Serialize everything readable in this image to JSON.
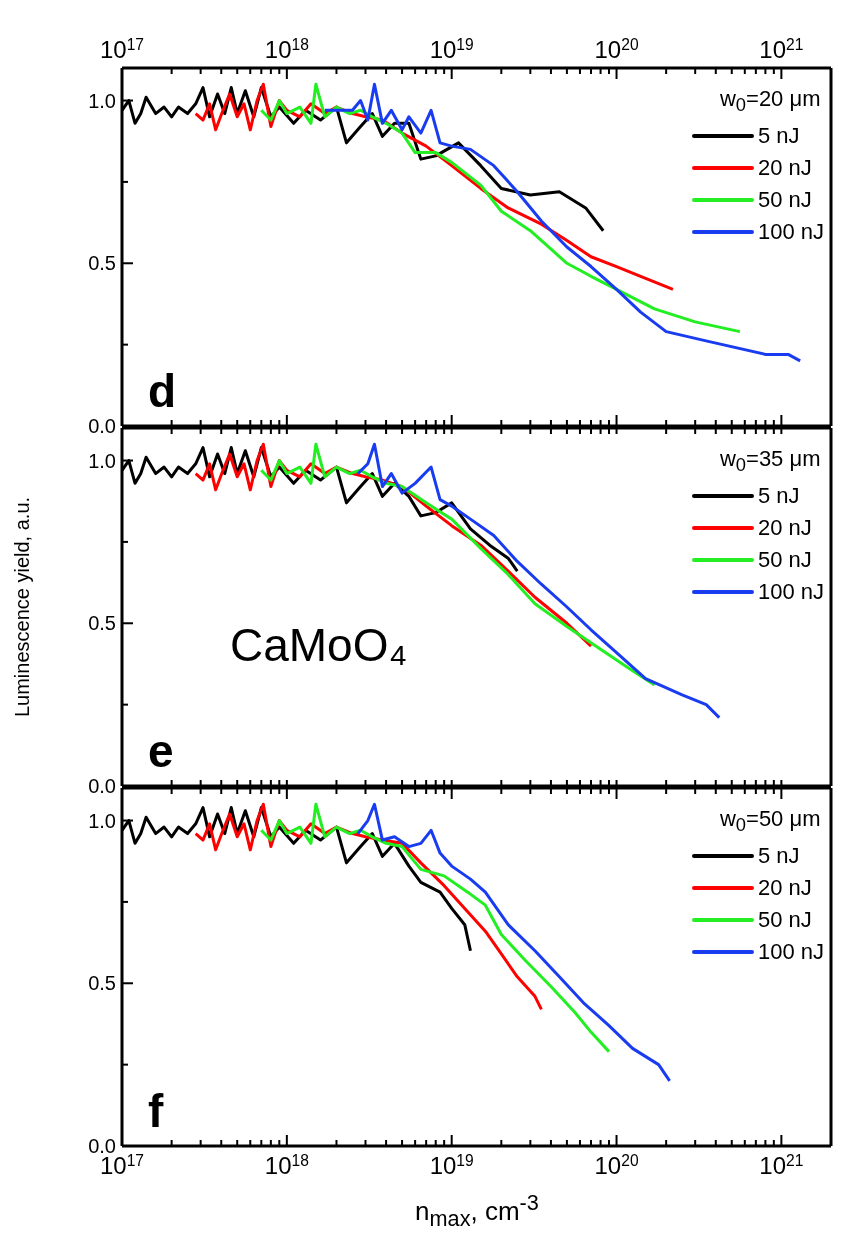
{
  "chart_data": [
    {
      "type": "line",
      "title": "d",
      "legend_title": "w$_{0}$=20 μm",
      "legend": "top right",
      "xlim": [
        1e+17,
        2e+21
      ],
      "ylim": [
        0,
        1.1
      ],
      "log": "x",
      "xticks": [
        {
          "value": 1e+17,
          "label": "10$^{17}$"
        },
        {
          "value": 2e+17,
          "label": null
        },
        {
          "value": 3e+17,
          "label": null
        },
        {
          "value": 4e+17,
          "label": null
        },
        {
          "value": 5e+17,
          "label": null
        },
        {
          "value": 6e+17,
          "label": null
        },
        {
          "value": 7e+17,
          "label": null
        },
        {
          "value": 8e+17,
          "label": null
        },
        {
          "value": 9e+17,
          "label": null
        },
        {
          "value": 1e+18,
          "label": "10$^{18}$"
        },
        {
          "value": 2e+18,
          "label": null
        },
        {
          "value": 3e+18,
          "label": null
        },
        {
          "value": 4e+18,
          "label": null
        },
        {
          "value": 5e+18,
          "label": null
        },
        {
          "value": 6e+18,
          "label": null
        },
        {
          "value": 7e+18,
          "label": null
        },
        {
          "value": 8e+18,
          "label": null
        },
        {
          "value": 9e+18,
          "label": null
        },
        {
          "value": 1e+19,
          "label": "10$^{19}$"
        },
        {
          "value": 2e+19,
          "label": null
        },
        {
          "value": 3e+19,
          "label": null
        },
        {
          "value": 4e+19,
          "label": null
        },
        {
          "value": 5e+19,
          "label": null
        },
        {
          "value": 6e+19,
          "label": null
        },
        {
          "value": 7e+19,
          "label": null
        },
        {
          "value": 8e+19,
          "label": null
        },
        {
          "value": 9e+19,
          "label": null
        },
        {
          "value": 1e+20,
          "label": "10$^{20}$"
        },
        {
          "value": 2e+20,
          "label": null
        },
        {
          "value": 3e+20,
          "label": null
        },
        {
          "value": 4e+20,
          "label": null
        },
        {
          "value": 5e+20,
          "label": null
        },
        {
          "value": 6e+20,
          "label": null
        },
        {
          "value": 7e+20,
          "label": null
        },
        {
          "value": 8e+20,
          "label": null
        },
        {
          "value": 9e+20,
          "label": null
        },
        {
          "value": 1e+21,
          "label": "10$^{21}$"
        }
      ],
      "yticks": [
        {
          "value": 0,
          "label": "0.0"
        },
        {
          "value": 0.25,
          "label": null
        },
        {
          "value": 0.5,
          "label": "0.5"
        },
        {
          "value": 0.75,
          "label": null
        },
        {
          "value": 1,
          "label": "1.0"
        }
      ],
      "series": [
        {
          "name": "5 nJ",
          "color": "#000000",
          "x": [
            1e+17,
            1.1e+17,
            1.2e+17,
            1.3e+17,
            1.4e+17,
            1.6e+17,
            1.8e+17,
            2e+17,
            2.2e+17,
            2.5e+17,
            2.8e+17,
            3.1e+17,
            3.4e+17,
            3.8e+17,
            4.2e+17,
            4.6e+17,
            5e+17,
            5.6e+17,
            6.3e+17,
            7e+17,
            8e+17,
            9e+17,
            1.1e+18,
            1.3e+18,
            1.6e+18,
            2e+18,
            2.3e+18,
            2.8e+18,
            3.3e+18,
            3.8e+18,
            4.5e+18,
            5.5e+18,
            6.5e+18,
            8e+18,
            1.1e+19,
            1.5e+19,
            2e+19,
            3e+19,
            4.5e+19,
            6.5e+19,
            8.3e+19
          ],
          "values": [
            0.97,
            1.0,
            0.93,
            0.96,
            1.01,
            0.96,
            0.98,
            0.95,
            0.98,
            0.96,
            0.99,
            1.04,
            0.95,
            1.02,
            0.96,
            1.04,
            0.96,
            1.03,
            0.95,
            1.04,
            0.95,
            0.98,
            0.93,
            0.97,
            0.94,
            0.98,
            0.87,
            0.92,
            0.96,
            0.89,
            0.93,
            0.93,
            0.82,
            0.83,
            0.87,
            0.8,
            0.73,
            0.71,
            0.72,
            0.67,
            0.6
          ]
        },
        {
          "name": "20 nJ",
          "color": "#ff0000",
          "x": [
            2.8e+17,
            3.1e+17,
            3.4e+17,
            3.7e+17,
            4.1e+17,
            4.5e+17,
            5e+17,
            5.5e+17,
            6e+17,
            6.6e+17,
            7.2e+17,
            8e+17,
            9e+17,
            1e+18,
            1.2e+18,
            1.4e+18,
            1.7e+18,
            2e+18,
            2.5e+18,
            3e+18,
            3.8e+18,
            5e+18,
            7e+18,
            1e+19,
            1.5e+19,
            2.2e+19,
            3.5e+19,
            5e+19,
            7e+19,
            1e+20,
            1.4e+20,
            2.2e+20
          ],
          "values": [
            0.96,
            0.94,
            0.99,
            0.91,
            0.97,
            1.02,
            0.95,
            0.99,
            0.91,
            1.0,
            1.05,
            0.92,
            1.0,
            0.97,
            0.95,
            0.99,
            0.96,
            0.98,
            0.96,
            0.95,
            0.94,
            0.9,
            0.86,
            0.8,
            0.73,
            0.67,
            0.62,
            0.57,
            0.52,
            0.49,
            0.46,
            0.42
          ]
        },
        {
          "name": "50 nJ",
          "color": "#22ee22",
          "x": [
            7e+17,
            8e+17,
            9e+17,
            1e+18,
            1.2e+18,
            1.4e+18,
            1.5e+18,
            1.7e+18,
            2e+18,
            2.4e+18,
            2.8e+18,
            3.3e+18,
            4e+18,
            5e+18,
            6e+18,
            8e+18,
            1e+19,
            1.5e+19,
            2e+19,
            3e+19,
            5e+19,
            7e+19,
            1e+20,
            1.7e+20,
            3e+20,
            5.6e+20
          ],
          "values": [
            0.97,
            0.94,
            1.0,
            0.96,
            0.98,
            0.93,
            1.05,
            0.95,
            0.98,
            0.96,
            0.97,
            0.95,
            0.93,
            0.9,
            0.84,
            0.84,
            0.81,
            0.74,
            0.66,
            0.6,
            0.5,
            0.46,
            0.42,
            0.36,
            0.32,
            0.29
          ]
        },
        {
          "name": "100 nJ",
          "color": "#1a3cf0",
          "x": [
            1.7e+18,
            2.5e+18,
            2.8e+18,
            3.1e+18,
            3.4e+18,
            3.8e+18,
            4.3e+18,
            5e+18,
            5.5e+18,
            6.5e+18,
            7.5e+18,
            8.5e+18,
            1e+19,
            1.3e+19,
            1.8e+19,
            2.5e+19,
            3.5e+19,
            5e+19,
            7e+19,
            1e+20,
            1.4e+20,
            2e+20,
            3.6e+20,
            8e+20,
            1.1e+21,
            1.3e+21
          ],
          "values": [
            0.97,
            0.97,
            1.0,
            0.94,
            1.05,
            0.93,
            0.97,
            0.91,
            0.95,
            0.9,
            0.97,
            0.87,
            0.86,
            0.85,
            0.8,
            0.72,
            0.63,
            0.55,
            0.49,
            0.42,
            0.35,
            0.29,
            0.26,
            0.22,
            0.22,
            0.2
          ]
        }
      ]
    },
    {
      "type": "line",
      "title": "e",
      "legend_title": "w$_{0}$=35 μm",
      "legend": "top right",
      "tick_labels": "y",
      "ylabel": "Luminescence yield, a.u.",
      "annotations": [
        "CaMoO₄"
      ],
      "xlim": [
        1e+17,
        2e+21
      ],
      "ylim": [
        0,
        1.1
      ],
      "log": "x",
      "xticks": [
        {
          "value": 1e+17,
          "label": null
        },
        {
          "value": 2e+17,
          "label": null
        },
        {
          "value": 3e+17,
          "label": null
        },
        {
          "value": 4e+17,
          "label": null
        },
        {
          "value": 5e+17,
          "label": null
        },
        {
          "value": 6e+17,
          "label": null
        },
        {
          "value": 7e+17,
          "label": null
        },
        {
          "value": 8e+17,
          "label": null
        },
        {
          "value": 9e+17,
          "label": null
        },
        {
          "value": 1e+18,
          "label": null
        },
        {
          "value": 2e+18,
          "label": null
        },
        {
          "value": 3e+18,
          "label": null
        },
        {
          "value": 4e+18,
          "label": null
        },
        {
          "value": 5e+18,
          "label": null
        },
        {
          "value": 6e+18,
          "label": null
        },
        {
          "value": 7e+18,
          "label": null
        },
        {
          "value": 8e+18,
          "label": null
        },
        {
          "value": 9e+18,
          "label": null
        },
        {
          "value": 1e+19,
          "label": null
        },
        {
          "value": 2e+19,
          "label": null
        },
        {
          "value": 3e+19,
          "label": null
        },
        {
          "value": 4e+19,
          "label": null
        },
        {
          "value": 5e+19,
          "label": null
        },
        {
          "value": 6e+19,
          "label": null
        },
        {
          "value": 7e+19,
          "label": null
        },
        {
          "value": 8e+19,
          "label": null
        },
        {
          "value": 9e+19,
          "label": null
        },
        {
          "value": 1e+20,
          "label": null
        },
        {
          "value": 2e+20,
          "label": null
        },
        {
          "value": 3e+20,
          "label": null
        },
        {
          "value": 4e+20,
          "label": null
        },
        {
          "value": 5e+20,
          "label": null
        },
        {
          "value": 6e+20,
          "label": null
        },
        {
          "value": 7e+20,
          "label": null
        },
        {
          "value": 8e+20,
          "label": null
        },
        {
          "value": 9e+20,
          "label": null
        },
        {
          "value": 1e+21,
          "label": null
        }
      ],
      "yticks": [
        {
          "value": 0,
          "label": "0.0"
        },
        {
          "value": 0.25,
          "label": null
        },
        {
          "value": 0.5,
          "label": "0.5"
        },
        {
          "value": 0.75,
          "label": null
        },
        {
          "value": 1,
          "label": "1.0"
        }
      ],
      "series": [
        {
          "name": "5 nJ",
          "color": "#000000",
          "x": [
            1e+17,
            1.1e+17,
            1.2e+17,
            1.3e+17,
            1.4e+17,
            1.6e+17,
            1.8e+17,
            2e+17,
            2.2e+17,
            2.5e+17,
            2.8e+17,
            3.1e+17,
            3.4e+17,
            3.8e+17,
            4.2e+17,
            4.6e+17,
            5e+17,
            5.6e+17,
            6.3e+17,
            7e+17,
            8e+17,
            9e+17,
            1.1e+18,
            1.3e+18,
            1.6e+18,
            2e+18,
            2.3e+18,
            2.8e+18,
            3.3e+18,
            3.8e+18,
            4.5e+18,
            5.5e+18,
            6.5e+18,
            8e+18,
            1e+19,
            1.3e+19,
            1.7e+19,
            2.2e+19,
            2.5e+19
          ],
          "values": [
            0.97,
            1.0,
            0.93,
            0.96,
            1.01,
            0.96,
            0.98,
            0.95,
            0.98,
            0.96,
            0.99,
            1.04,
            0.95,
            1.02,
            0.96,
            1.04,
            0.96,
            1.03,
            0.95,
            1.04,
            0.95,
            0.98,
            0.93,
            0.97,
            0.94,
            0.98,
            0.87,
            0.92,
            0.96,
            0.89,
            0.93,
            0.89,
            0.83,
            0.84,
            0.87,
            0.79,
            0.74,
            0.7,
            0.66
          ]
        },
        {
          "name": "20 nJ",
          "color": "#ff0000",
          "x": [
            2.8e+17,
            3.1e+17,
            3.4e+17,
            3.7e+17,
            4.1e+17,
            4.5e+17,
            5e+17,
            5.5e+17,
            6e+17,
            6.6e+17,
            7.2e+17,
            8e+17,
            9e+17,
            1e+18,
            1.2e+18,
            1.4e+18,
            1.7e+18,
            2e+18,
            2.5e+18,
            3e+18,
            3.8e+18,
            5e+18,
            7e+18,
            1e+19,
            1.5e+19,
            2.2e+19,
            3.2e+19,
            5e+19,
            7e+19
          ],
          "values": [
            0.96,
            0.94,
            0.99,
            0.91,
            0.97,
            1.02,
            0.95,
            0.99,
            0.91,
            1.0,
            1.05,
            0.92,
            1.0,
            0.97,
            0.95,
            0.99,
            0.96,
            0.98,
            0.96,
            0.95,
            0.94,
            0.92,
            0.86,
            0.8,
            0.74,
            0.66,
            0.58,
            0.5,
            0.43
          ]
        },
        {
          "name": "50 nJ",
          "color": "#22ee22",
          "x": [
            7e+17,
            8e+17,
            9e+17,
            1e+18,
            1.2e+18,
            1.4e+18,
            1.5e+18,
            1.7e+18,
            2e+18,
            2.4e+18,
            2.8e+18,
            3.3e+18,
            4e+18,
            5e+18,
            7e+18,
            1e+19,
            1.5e+19,
            2.2e+19,
            3.2e+19,
            5e+19,
            8e+19,
            1.2e+20,
            1.7e+20
          ],
          "values": [
            0.97,
            0.94,
            1.0,
            0.96,
            0.98,
            0.93,
            1.05,
            0.95,
            0.98,
            0.96,
            0.97,
            0.95,
            0.93,
            0.92,
            0.87,
            0.82,
            0.73,
            0.65,
            0.56,
            0.49,
            0.42,
            0.36,
            0.31
          ]
        },
        {
          "name": "100 nJ",
          "color": "#1a3cf0",
          "x": [
            2.7e+18,
            3.1e+18,
            3.4e+18,
            3.8e+18,
            4.3e+18,
            5e+18,
            6e+18,
            7.5e+18,
            8.5e+18,
            1e+19,
            1.3e+19,
            1.8e+19,
            2.5e+19,
            3.5e+19,
            5e+19,
            7e+19,
            1e+20,
            1.5e+20,
            2.5e+20,
            3.5e+20,
            4.2e+20
          ],
          "values": [
            0.96,
            0.99,
            1.05,
            0.92,
            0.96,
            0.9,
            0.93,
            0.98,
            0.88,
            0.86,
            0.82,
            0.77,
            0.69,
            0.62,
            0.55,
            0.48,
            0.41,
            0.33,
            0.28,
            0.25,
            0.21
          ]
        }
      ]
    },
    {
      "type": "line",
      "title": "f",
      "legend_title": "w$_{0}$=50 μm",
      "legend": "top right",
      "xlabel": "n$_{max}$, cm$^{-3}$",
      "xlim": [
        1e+17,
        2e+21
      ],
      "ylim": [
        0,
        1.1
      ],
      "log": "x",
      "xticks": [
        {
          "value": 1e+17,
          "label": "10$^{17}$"
        },
        {
          "value": 2e+17,
          "label": null
        },
        {
          "value": 3e+17,
          "label": null
        },
        {
          "value": 4e+17,
          "label": null
        },
        {
          "value": 5e+17,
          "label": null
        },
        {
          "value": 6e+17,
          "label": null
        },
        {
          "value": 7e+17,
          "label": null
        },
        {
          "value": 8e+17,
          "label": null
        },
        {
          "value": 9e+17,
          "label": null
        },
        {
          "value": 1e+18,
          "label": "10$^{18}$"
        },
        {
          "value": 2e+18,
          "label": null
        },
        {
          "value": 3e+18,
          "label": null
        },
        {
          "value": 4e+18,
          "label": null
        },
        {
          "value": 5e+18,
          "label": null
        },
        {
          "value": 6e+18,
          "label": null
        },
        {
          "value": 7e+18,
          "label": null
        },
        {
          "value": 8e+18,
          "label": null
        },
        {
          "value": 9e+18,
          "label": null
        },
        {
          "value": 1e+19,
          "label": "10$^{19}$"
        },
        {
          "value": 2e+19,
          "label": null
        },
        {
          "value": 3e+19,
          "label": null
        },
        {
          "value": 4e+19,
          "label": null
        },
        {
          "value": 5e+19,
          "label": null
        },
        {
          "value": 6e+19,
          "label": null
        },
        {
          "value": 7e+19,
          "label": null
        },
        {
          "value": 8e+19,
          "label": null
        },
        {
          "value": 9e+19,
          "label": null
        },
        {
          "value": 1e+20,
          "label": "10$^{20}$"
        },
        {
          "value": 2e+20,
          "label": null
        },
        {
          "value": 3e+20,
          "label": null
        },
        {
          "value": 4e+20,
          "label": null
        },
        {
          "value": 5e+20,
          "label": null
        },
        {
          "value": 6e+20,
          "label": null
        },
        {
          "value": 7e+20,
          "label": null
        },
        {
          "value": 8e+20,
          "label": null
        },
        {
          "value": 9e+20,
          "label": null
        },
        {
          "value": 1e+21,
          "label": "10$^{21}$"
        }
      ],
      "yticks": [
        {
          "value": 0,
          "label": "0.0"
        },
        {
          "value": 0.25,
          "label": null
        },
        {
          "value": 0.5,
          "label": "0.5"
        },
        {
          "value": 0.75,
          "label": null
        },
        {
          "value": 1,
          "label": "1.0"
        }
      ],
      "series": [
        {
          "name": "5 nJ",
          "color": "#000000",
          "x": [
            1e+17,
            1.1e+17,
            1.2e+17,
            1.3e+17,
            1.4e+17,
            1.6e+17,
            1.8e+17,
            2e+17,
            2.2e+17,
            2.5e+17,
            2.8e+17,
            3.1e+17,
            3.4e+17,
            3.8e+17,
            4.2e+17,
            4.6e+17,
            5e+17,
            5.6e+17,
            6.3e+17,
            7e+17,
            8e+17,
            9e+17,
            1.1e+18,
            1.3e+18,
            1.6e+18,
            2e+18,
            2.3e+18,
            2.8e+18,
            3.3e+18,
            3.8e+18,
            4.5e+18,
            5.5e+18,
            6.5e+18,
            8.5e+18,
            1e+19,
            1.2e+19,
            1.3e+19
          ],
          "values": [
            0.97,
            1.0,
            0.93,
            0.96,
            1.01,
            0.96,
            0.98,
            0.95,
            0.98,
            0.96,
            0.99,
            1.04,
            0.95,
            1.02,
            0.96,
            1.04,
            0.96,
            1.03,
            0.95,
            1.04,
            0.95,
            0.98,
            0.93,
            0.97,
            0.94,
            0.98,
            0.87,
            0.92,
            0.96,
            0.89,
            0.93,
            0.86,
            0.81,
            0.78,
            0.73,
            0.68,
            0.6
          ]
        },
        {
          "name": "20 nJ",
          "color": "#ff0000",
          "x": [
            2.8e+17,
            3.1e+17,
            3.4e+17,
            3.7e+17,
            4.1e+17,
            4.5e+17,
            5e+17,
            5.5e+17,
            6e+17,
            6.6e+17,
            7.2e+17,
            8e+17,
            9e+17,
            1e+18,
            1.2e+18,
            1.4e+18,
            1.7e+18,
            2e+18,
            2.5e+18,
            3e+18,
            3.8e+18,
            5e+18,
            6.5e+18,
            9e+18,
            1.25e+19,
            1.6e+19,
            2e+19,
            2.5e+19,
            3.2e+19,
            3.5e+19
          ],
          "values": [
            0.96,
            0.94,
            0.99,
            0.91,
            0.97,
            1.02,
            0.95,
            0.99,
            0.91,
            1.0,
            1.05,
            0.92,
            1.0,
            0.97,
            0.95,
            0.99,
            0.96,
            0.98,
            0.96,
            0.95,
            0.94,
            0.93,
            0.87,
            0.8,
            0.72,
            0.66,
            0.59,
            0.52,
            0.46,
            0.42
          ]
        },
        {
          "name": "50 nJ",
          "color": "#22ee22",
          "x": [
            7e+17,
            8e+17,
            9e+17,
            1e+18,
            1.2e+18,
            1.4e+18,
            1.5e+18,
            1.7e+18,
            2e+18,
            2.4e+18,
            2.8e+18,
            3.3e+18,
            4e+18,
            5e+18,
            6.5e+18,
            9e+18,
            1.25e+19,
            1.6e+19,
            2e+19,
            2.8e+19,
            4e+19,
            5.6e+19,
            7e+19,
            9e+19
          ],
          "values": [
            0.97,
            0.94,
            1.0,
            0.96,
            0.98,
            0.93,
            1.05,
            0.95,
            0.98,
            0.96,
            0.97,
            0.95,
            0.93,
            0.92,
            0.85,
            0.83,
            0.78,
            0.74,
            0.65,
            0.57,
            0.49,
            0.41,
            0.35,
            0.29
          ]
        },
        {
          "name": "100 nJ",
          "color": "#1a3cf0",
          "x": [
            2.7e+18,
            3.1e+18,
            3.4e+18,
            3.8e+18,
            4.5e+18,
            5.5e+18,
            6.5e+18,
            7.5e+18,
            8.5e+18,
            1e+19,
            1.3e+19,
            1.6e+19,
            2.2e+19,
            3.2e+19,
            4.5e+19,
            6.3e+19,
            9e+19,
            1.25e+20,
            1.8e+20,
            2.1e+20
          ],
          "values": [
            0.96,
            1.0,
            1.05,
            0.94,
            0.95,
            0.92,
            0.93,
            0.97,
            0.9,
            0.86,
            0.82,
            0.78,
            0.68,
            0.6,
            0.52,
            0.44,
            0.37,
            0.3,
            0.25,
            0.2
          ]
        }
      ]
    }
  ]
}
